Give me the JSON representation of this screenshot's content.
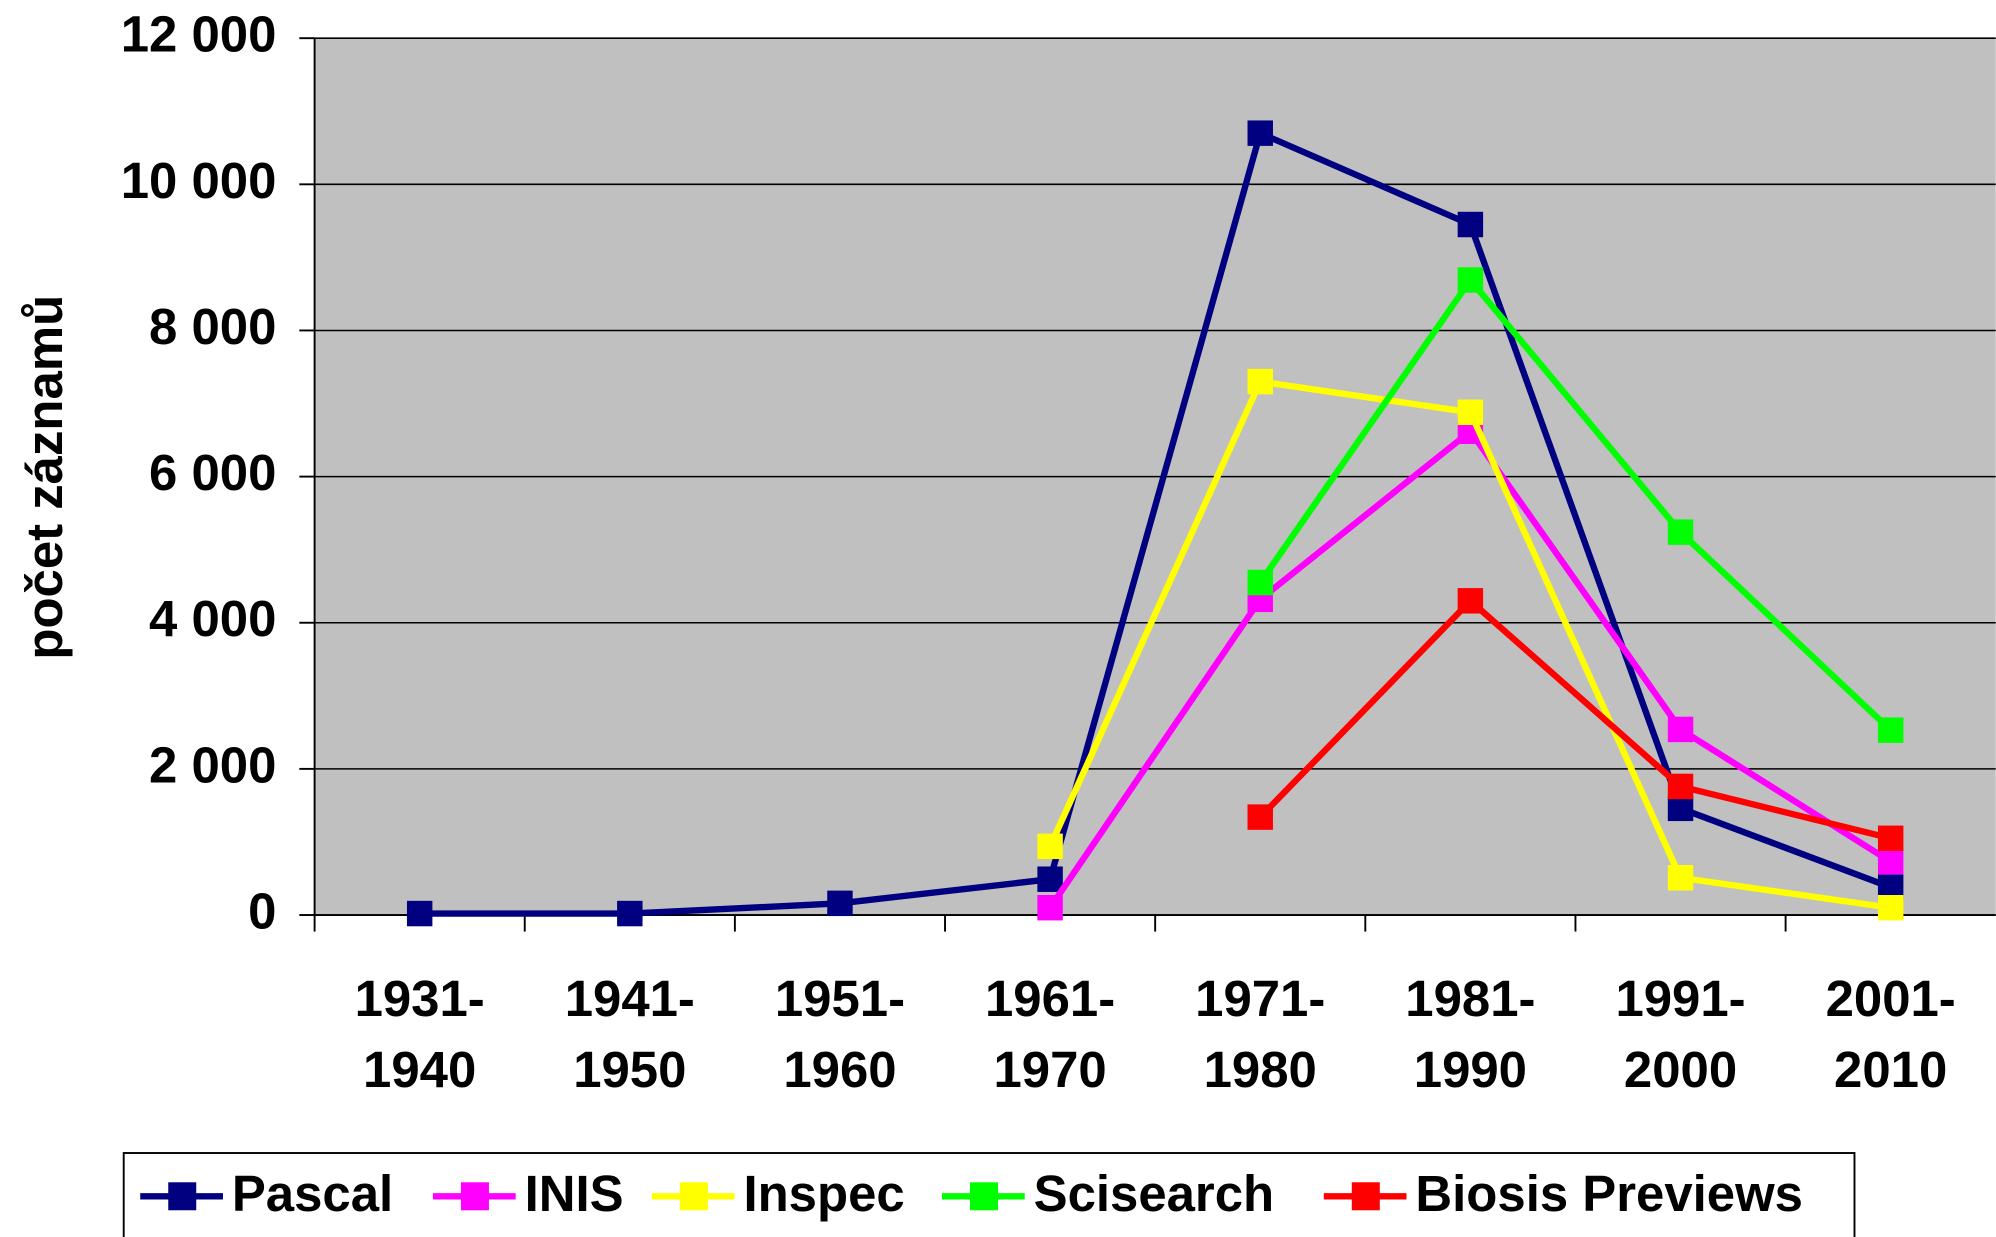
{
  "chart_data": {
    "type": "line",
    "y_label": "počet záznamů",
    "categories": [
      "1931-1940",
      "1941-1950",
      "1951-1960",
      "1961-1970",
      "1971-1980",
      "1981-1990",
      "1991-2000",
      "2001-2010"
    ],
    "series": [
      {
        "name": "Pascal",
        "color": "#000080",
        "values": [
          20,
          20,
          160,
          490,
          10700,
          9450,
          1460,
          380
        ]
      },
      {
        "name": "INIS",
        "color": "#ff00ff",
        "values": [
          null,
          null,
          null,
          100,
          4320,
          6620,
          2540,
          730
        ]
      },
      {
        "name": "Inspec",
        "color": "#ffff00",
        "values": [
          null,
          null,
          null,
          940,
          7300,
          6880,
          510,
          100
        ]
      },
      {
        "name": "Scisearch",
        "color": "#00ff00",
        "values": [
          null,
          null,
          null,
          null,
          4550,
          8690,
          5240,
          2530
        ]
      },
      {
        "name": "Biosis Previews",
        "color": "#ff0000",
        "values": [
          null,
          null,
          null,
          null,
          1340,
          4300,
          1760,
          1050
        ]
      }
    ],
    "ylim": [
      0,
      12000
    ],
    "yticks": [
      0,
      {
        "value": 2000,
        "label": "2 000"
      },
      {
        "value": 4000,
        "label": "4 000"
      },
      {
        "value": 6000,
        "label": "6 000"
      },
      {
        "value": 8000,
        "label": "8 000"
      },
      {
        "value": 10000,
        "label": "10 000"
      },
      {
        "value": 12000,
        "label": "12 000"
      }
    ],
    "grid": true,
    "plot_background": "#c0c0c0",
    "legend": "bottom"
  }
}
